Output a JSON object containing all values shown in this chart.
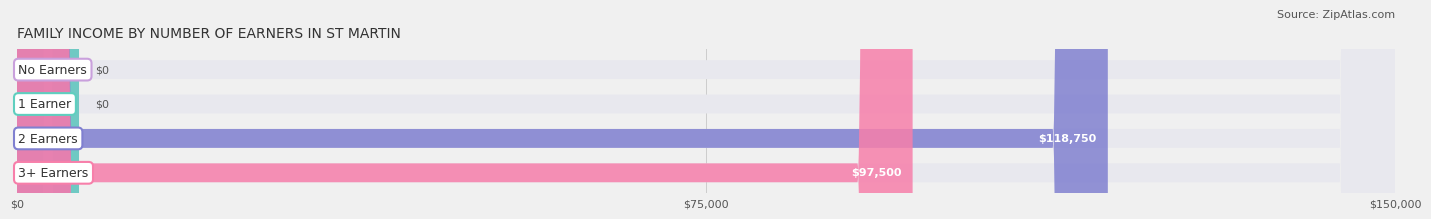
{
  "title": "FAMILY INCOME BY NUMBER OF EARNERS IN ST MARTIN",
  "source": "Source: ZipAtlas.com",
  "categories": [
    "No Earners",
    "1 Earner",
    "2 Earners",
    "3+ Earners"
  ],
  "values": [
    0,
    0,
    118750,
    97500
  ],
  "bar_colors": [
    "#c9a0dc",
    "#5fcfbf",
    "#8080d0",
    "#f77faa"
  ],
  "value_labels": [
    "$0",
    "$0",
    "$118,750",
    "$97,500"
  ],
  "xlim": [
    0,
    150000
  ],
  "xtick_labels": [
    "$0",
    "$75,000",
    "$150,000"
  ],
  "bar_height": 0.55,
  "background_color": "#f0f0f0",
  "bar_bg_color": "#e8e8ee",
  "title_fontsize": 10,
  "source_fontsize": 8,
  "label_fontsize": 9,
  "value_fontsize": 8
}
